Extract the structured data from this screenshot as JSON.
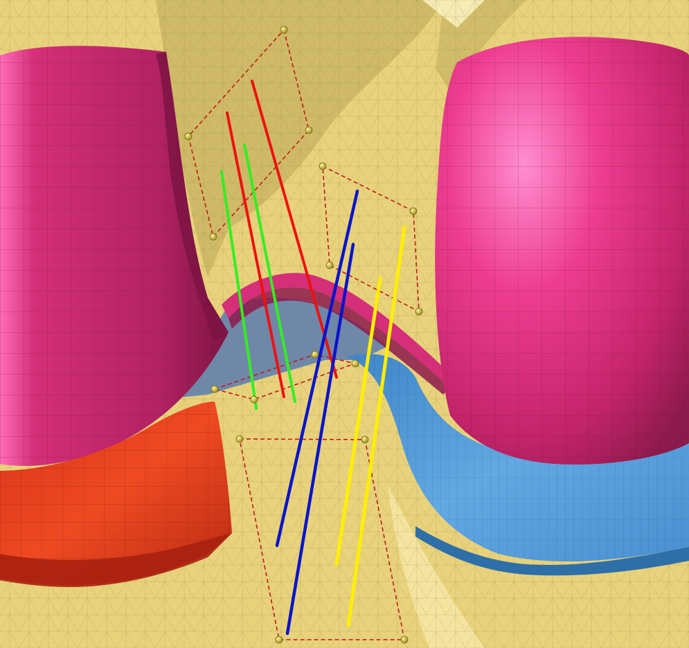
{
  "scene": {
    "background_color": "#e8d27c",
    "mesh_tri_color": "#9a8a4a",
    "shadow_color": "#a8953f",
    "highlight_color": "#fff2bd",
    "magenta_color": "#d42f78",
    "magenta_light": "#ff7ac4",
    "magenta_dark": "#8c1a4c",
    "red_color": "#e23a1f",
    "red_dark": "#a82010",
    "blue_color": "#5aa0dc",
    "blue_dark": "#2f6fa8",
    "slate_color": "#6f88a8",
    "dash_color": "#c01818",
    "node_color": "#d7c23a",
    "green_line_color": "#33ee22",
    "red_line_color": "#ee1111",
    "blue_line_color": "#0a14cc",
    "yellow_line_color": "#ffee00"
  },
  "objects": [
    {
      "name": "left-magenta-cylinder",
      "color": "magenta"
    },
    {
      "name": "right-magenta-cylinder",
      "color": "magenta"
    },
    {
      "name": "red-block",
      "color": "red"
    },
    {
      "name": "blue-ribbon",
      "color": "blue"
    },
    {
      "name": "yellow-mesh-surface",
      "color": "yellow"
    }
  ],
  "line_groups": [
    {
      "name": "green-lines",
      "color": "green",
      "count": 2
    },
    {
      "name": "red-lines",
      "color": "red",
      "count": 2
    },
    {
      "name": "blue-lines",
      "color": "blue",
      "count": 2
    },
    {
      "name": "yellow-lines",
      "color": "yellow",
      "count": 2
    }
  ],
  "dashed_frames": 4
}
